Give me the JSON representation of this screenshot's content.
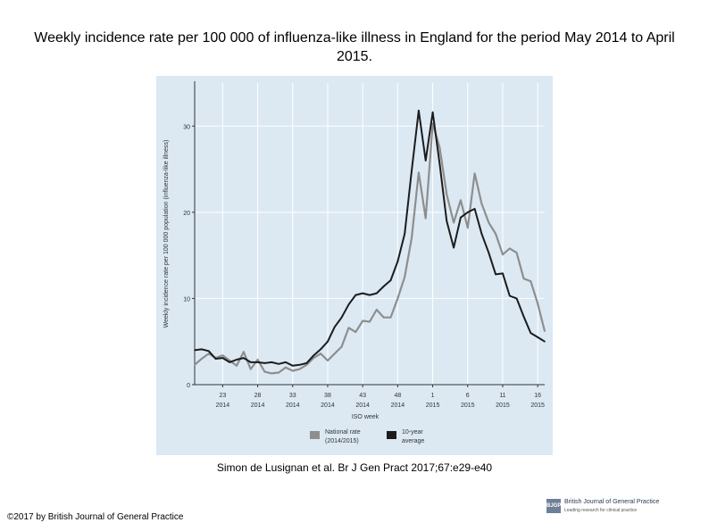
{
  "title": "Weekly incidence rate per 100 000 of influenza-like illness in England for the period May 2014 to April 2015.",
  "citation": "Simon de Lusignan et al. Br J Gen Pract 2017;67:e29-e40",
  "copyright": "©2017 by British Journal of General Practice",
  "journal": {
    "mark": "BJGP",
    "name": "British Journal of General Practice",
    "tagline": "Leading research for clinical practice"
  },
  "colors": {
    "national": "#8e8e8e",
    "average": "#1c1c1c",
    "background": "#dce9f3"
  },
  "chart_data": {
    "type": "line",
    "title": "Weekly incidence rate per 100 000 of influenza-like illness in England for the period May 2014 to April 2015.",
    "xlabel": "ISO week",
    "ylabel": "Weekly incidence rate per 100 000 population (influenza-like illness)",
    "xlim": [
      19,
      69
    ],
    "ylim": [
      0,
      35
    ],
    "yticks": [
      0,
      10,
      20,
      30
    ],
    "xticks": [
      {
        "x": 23,
        "label1": "23",
        "label2": "2014"
      },
      {
        "x": 28,
        "label1": "28",
        "label2": "2014"
      },
      {
        "x": 33,
        "label1": "33",
        "label2": "2014"
      },
      {
        "x": 38,
        "label1": "38",
        "label2": "2014"
      },
      {
        "x": 43,
        "label1": "43",
        "label2": "2014"
      },
      {
        "x": 48,
        "label1": "48",
        "label2": "2014"
      },
      {
        "x": 53,
        "label1": "1",
        "label2": "2015"
      },
      {
        "x": 58,
        "label1": "6",
        "label2": "2015"
      },
      {
        "x": 63,
        "label1": "11",
        "label2": "2015"
      },
      {
        "x": 68,
        "label1": "16",
        "label2": "2015"
      }
    ],
    "x_note": "x = ISO week counted continuously from week 19 of 2014; 53 = week 1 of 2015",
    "grid": true,
    "series": [
      {
        "name": "National rate (2014/2015)",
        "legend_lines": [
          "National rate",
          "(2014/2015)"
        ],
        "color": "#8e8e8e",
        "x": [
          19,
          20,
          21,
          22,
          23,
          24,
          25,
          26,
          27,
          28,
          29,
          30,
          31,
          32,
          33,
          34,
          35,
          36,
          37,
          38,
          39,
          40,
          41,
          42,
          43,
          44,
          45,
          46,
          47,
          48,
          49,
          50,
          51,
          52,
          53,
          54,
          55,
          56,
          57,
          58,
          59,
          60,
          61,
          62,
          63,
          64,
          65,
          66,
          67,
          68,
          69
        ],
        "values": [
          2.3,
          3.0,
          3.6,
          3.1,
          3.4,
          2.8,
          2.2,
          3.8,
          1.8,
          2.9,
          1.5,
          1.3,
          1.4,
          2.0,
          1.6,
          1.8,
          2.3,
          3.1,
          3.6,
          2.8,
          3.6,
          4.4,
          6.6,
          6.1,
          7.4,
          7.3,
          8.7,
          7.8,
          7.8,
          10.0,
          12.5,
          17.0,
          24.6,
          19.3,
          30.3,
          27.5,
          22.1,
          18.8,
          21.4,
          18.2,
          24.5,
          21.0,
          18.8,
          17.5,
          15.1,
          15.8,
          15.3,
          12.3,
          12.0,
          9.4,
          6.2
        ]
      },
      {
        "name": "10-year average",
        "legend_lines": [
          "10-year",
          "average"
        ],
        "color": "#1c1c1c",
        "x": [
          19,
          20,
          21,
          22,
          23,
          24,
          25,
          26,
          27,
          28,
          29,
          30,
          31,
          32,
          33,
          34,
          35,
          36,
          37,
          38,
          39,
          40,
          41,
          42,
          43,
          44,
          45,
          46,
          47,
          48,
          49,
          50,
          51,
          52,
          53,
          54,
          55,
          56,
          57,
          58,
          59,
          60,
          61,
          62,
          63,
          64,
          65,
          66,
          67,
          68,
          69
        ],
        "values": [
          4.0,
          4.1,
          3.9,
          3.0,
          3.1,
          2.6,
          2.9,
          3.1,
          2.6,
          2.6,
          2.5,
          2.6,
          2.4,
          2.6,
          2.2,
          2.3,
          2.5,
          3.4,
          4.1,
          5.0,
          6.7,
          7.8,
          9.3,
          10.4,
          10.6,
          10.4,
          10.6,
          11.4,
          12.1,
          14.3,
          17.5,
          24.8,
          31.8,
          26.0,
          31.6,
          25.6,
          19.0,
          15.9,
          19.4,
          20.0,
          20.4,
          17.5,
          15.3,
          12.8,
          12.9,
          10.3,
          10.0,
          7.9,
          6.0,
          5.5,
          5.0
        ]
      }
    ]
  }
}
